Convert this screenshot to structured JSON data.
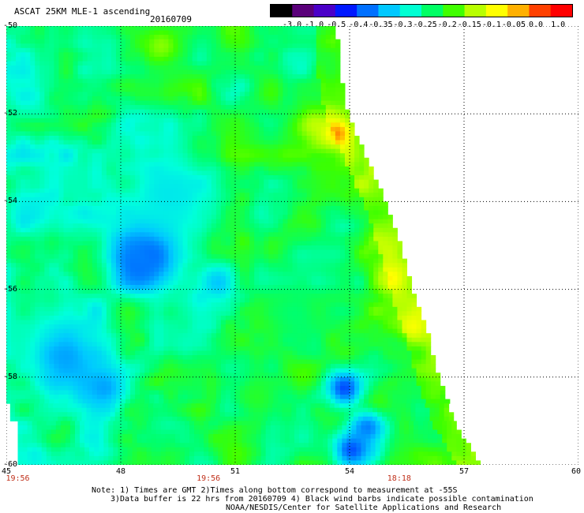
{
  "header": {
    "title": "ASCAT 25KM MLE-1 ascending",
    "date": "20160709"
  },
  "colorbar": {
    "labels": [
      "-3.0",
      "-1.0",
      "-0.5",
      "-0.4",
      "-0.35",
      "-0.3",
      "-0.25",
      "-0.2",
      "-0.15",
      "-0.1",
      "-0.05",
      "0.0",
      "1.0"
    ],
    "colors": [
      "#000000",
      "#5a007a",
      "#4a00c8",
      "#0018ff",
      "#0070ff",
      "#00c8ff",
      "#00ffd2",
      "#00ff64",
      "#40ff00",
      "#b8ff00",
      "#ffff00",
      "#ffb000",
      "#ff4000",
      "#ff0000"
    ]
  },
  "axes": {
    "lat_labels": [
      "-50",
      "-52",
      "-54",
      "-56",
      "-58",
      "-60"
    ],
    "lat_values": [
      -50,
      -52,
      -54,
      -56,
      -58,
      -60
    ],
    "lon_labels": [
      "45",
      "48",
      "51",
      "54",
      "57",
      "60"
    ],
    "lon_values": [
      45,
      48,
      51,
      54,
      57,
      60
    ],
    "lat_range": [
      -60,
      -50
    ],
    "lon_range": [
      45,
      60
    ]
  },
  "time_labels": [
    {
      "text": "19:56",
      "lon": 45.3
    },
    {
      "text": "19:56",
      "lon": 50.3
    },
    {
      "text": "18:18",
      "lon": 55.3
    }
  ],
  "swath": {
    "right_edge": [
      {
        "lat": -50.0,
        "lon": 53.6
      },
      {
        "lat": -51.0,
        "lon": 53.7
      },
      {
        "lat": -52.0,
        "lon": 53.9
      },
      {
        "lat": -53.0,
        "lon": 54.4
      },
      {
        "lat": -54.0,
        "lon": 54.9
      },
      {
        "lat": -55.0,
        "lon": 55.3
      },
      {
        "lat": -56.0,
        "lon": 55.6
      },
      {
        "lat": -57.0,
        "lon": 56.0
      },
      {
        "lat": -58.0,
        "lon": 56.3
      },
      {
        "lat": -59.0,
        "lon": 56.7
      },
      {
        "lat": -60.0,
        "lon": 57.4
      }
    ],
    "blobs": [
      {
        "lat": -55.1,
        "lon": 48.7,
        "r": 0.9,
        "level": -0.38
      },
      {
        "lat": -55.4,
        "lon": 48.4,
        "r": 0.7,
        "level": -0.35
      },
      {
        "lat": -57.5,
        "lon": 46.5,
        "r": 1.0,
        "level": -0.32
      },
      {
        "lat": -58.2,
        "lon": 47.5,
        "r": 0.7,
        "level": -0.32
      },
      {
        "lat": -58.2,
        "lon": 53.8,
        "r": 0.6,
        "level": -0.37
      },
      {
        "lat": -59.6,
        "lon": 54.0,
        "r": 0.6,
        "level": -0.37
      },
      {
        "lat": -59.1,
        "lon": 54.4,
        "r": 0.5,
        "level": -0.34
      },
      {
        "lat": -55.8,
        "lon": 50.5,
        "r": 0.6,
        "level": -0.3
      },
      {
        "lat": -53.8,
        "lon": 49.2,
        "r": 1.3,
        "level": -0.27
      },
      {
        "lat": -52.2,
        "lon": 53.0,
        "r": 0.7,
        "level": -0.1
      },
      {
        "lat": -52.4,
        "lon": 53.6,
        "r": 0.4,
        "level": -0.02
      },
      {
        "lat": -50.4,
        "lon": 49.0,
        "r": 0.7,
        "level": -0.12
      },
      {
        "lat": -55.7,
        "lon": 55.0,
        "r": 0.6,
        "level": -0.08
      },
      {
        "lat": -56.8,
        "lon": 55.6,
        "r": 0.5,
        "level": -0.09
      },
      {
        "lat": -58.4,
        "lon": 51.5,
        "r": 0.8,
        "level": -0.17
      },
      {
        "lat": -56.5,
        "lon": 52.5,
        "r": 1.0,
        "level": -0.2
      }
    ]
  },
  "notes": [
    "Note: 1) Times are GMT 2)Times along bottom correspond to measurement at -55S",
    "3)Data buffer is 22 hrs from 20160709 4) Black wind barbs indicate possible contamination",
    "NOAA/NESDIS/Center for Satellite Applications and Research"
  ]
}
